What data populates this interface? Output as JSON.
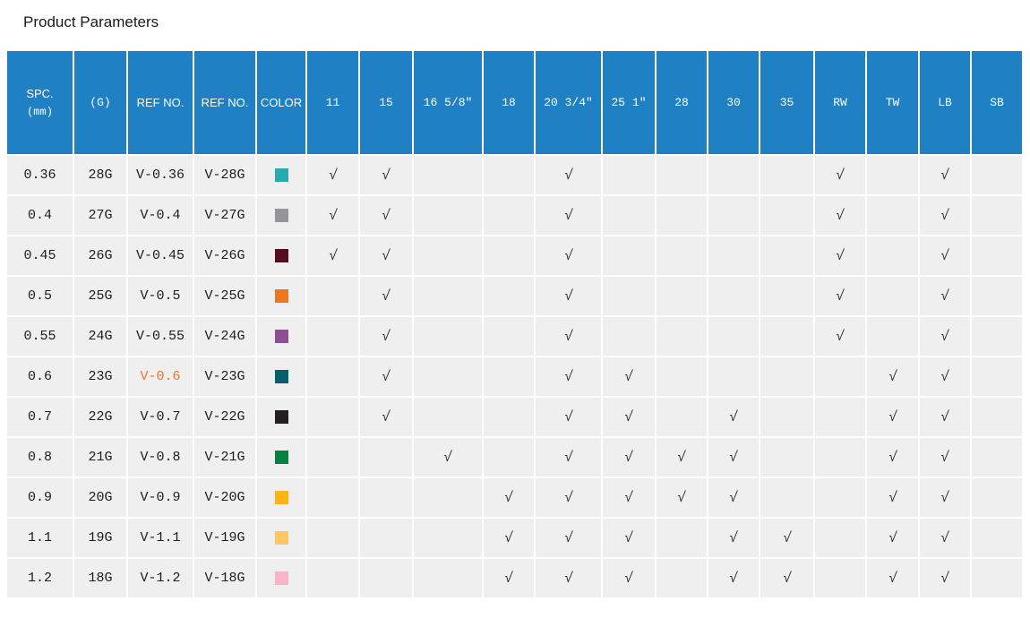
{
  "page": {
    "title": "Product Parameters"
  },
  "colors": {
    "header_bg": "#1f80c3",
    "header_text": "#ffffff",
    "cell_bg": "#f0efef",
    "grid_line": "#ffffff",
    "body_text": "#1d1d1d",
    "highlight": "#f0751f"
  },
  "table": {
    "check_glyph": "√",
    "columns": [
      {
        "id": "spc",
        "label": "SPC.",
        "sublabel": "(mm)"
      },
      {
        "id": "g",
        "label": "(G)"
      },
      {
        "id": "ref1",
        "label": "REF NO."
      },
      {
        "id": "ref2",
        "label": "REF NO."
      },
      {
        "id": "color",
        "label": "COLOR"
      },
      {
        "id": "c11",
        "label": "11"
      },
      {
        "id": "c15",
        "label": "15"
      },
      {
        "id": "c16",
        "label": "16 5/8″"
      },
      {
        "id": "c18",
        "label": "18"
      },
      {
        "id": "c20",
        "label": "20 3/4″"
      },
      {
        "id": "c25",
        "label": "25 1″"
      },
      {
        "id": "c28",
        "label": "28"
      },
      {
        "id": "c30",
        "label": "30"
      },
      {
        "id": "c35",
        "label": "35"
      },
      {
        "id": "rw",
        "label": "RW"
      },
      {
        "id": "tw",
        "label": "TW"
      },
      {
        "id": "lb",
        "label": "LB"
      },
      {
        "id": "sb",
        "label": "SB"
      }
    ],
    "rows": [
      {
        "spc": "0.36",
        "g": "28G",
        "ref1": "V-0.36",
        "ref1_highlighted": false,
        "ref2": "V-28G",
        "swatch": "#2aa9ae",
        "swatch_name": "teal",
        "checks": [
          "c11",
          "c15",
          "c20",
          "rw",
          "lb"
        ]
      },
      {
        "spc": "0.4",
        "g": "27G",
        "ref1": "V-0.4",
        "ref1_highlighted": false,
        "ref2": "V-27G",
        "swatch": "#94959b",
        "swatch_name": "gray",
        "checks": [
          "c11",
          "c15",
          "c20",
          "rw",
          "lb"
        ]
      },
      {
        "spc": "0.45",
        "g": "26G",
        "ref1": "V-0.45",
        "ref1_highlighted": false,
        "ref2": "V-26G",
        "swatch": "#560d20",
        "swatch_name": "dark-maroon",
        "checks": [
          "c11",
          "c15",
          "c20",
          "rw",
          "lb"
        ]
      },
      {
        "spc": "0.5",
        "g": "25G",
        "ref1": "V-0.5",
        "ref1_highlighted": false,
        "ref2": "V-25G",
        "swatch": "#f0751f",
        "swatch_name": "orange",
        "checks": [
          "c15",
          "c20",
          "rw",
          "lb"
        ]
      },
      {
        "spc": "0.55",
        "g": "24G",
        "ref1": "V-0.55",
        "ref1_highlighted": false,
        "ref2": "V-24G",
        "swatch": "#8d4f93",
        "swatch_name": "purple",
        "checks": [
          "c15",
          "c20",
          "rw",
          "lb"
        ]
      },
      {
        "spc": "0.6",
        "g": "23G",
        "ref1": "V-0.6",
        "ref1_highlighted": true,
        "ref2": "V-23G",
        "swatch": "#06606c",
        "swatch_name": "dark-teal",
        "checks": [
          "c15",
          "c20",
          "c25",
          "tw",
          "lb"
        ]
      },
      {
        "spc": "0.7",
        "g": "22G",
        "ref1": "V-0.7",
        "ref1_highlighted": false,
        "ref2": "V-22G",
        "swatch": "#251f21",
        "swatch_name": "black",
        "checks": [
          "c15",
          "c20",
          "c25",
          "c30",
          "tw",
          "lb"
        ]
      },
      {
        "spc": "0.8",
        "g": "21G",
        "ref1": "V-0.8",
        "ref1_highlighted": false,
        "ref2": "V-21G",
        "swatch": "#078140",
        "swatch_name": "green",
        "checks": [
          "c16",
          "c20",
          "c25",
          "c28",
          "c30",
          "tw",
          "lb"
        ]
      },
      {
        "spc": "0.9",
        "g": "20G",
        "ref1": "V-0.9",
        "ref1_highlighted": false,
        "ref2": "V-20G",
        "swatch": "#fcb515",
        "swatch_name": "amber",
        "checks": [
          "c18",
          "c20",
          "c25",
          "c28",
          "c30",
          "tw",
          "lb"
        ]
      },
      {
        "spc": "1.1",
        "g": "19G",
        "ref1": "V-1.1",
        "ref1_highlighted": false,
        "ref2": "V-19G",
        "swatch": "#fcc764",
        "swatch_name": "light-amber",
        "checks": [
          "c18",
          "c20",
          "c25",
          "c30",
          "c35",
          "tw",
          "lb"
        ]
      },
      {
        "spc": "1.2",
        "g": "18G",
        "ref1": "V-1.2",
        "ref1_highlighted": false,
        "ref2": "V-18G",
        "swatch": "#f9b4c7",
        "swatch_name": "pink",
        "checks": [
          "c18",
          "c20",
          "c25",
          "c30",
          "c35",
          "tw",
          "lb"
        ]
      }
    ]
  }
}
